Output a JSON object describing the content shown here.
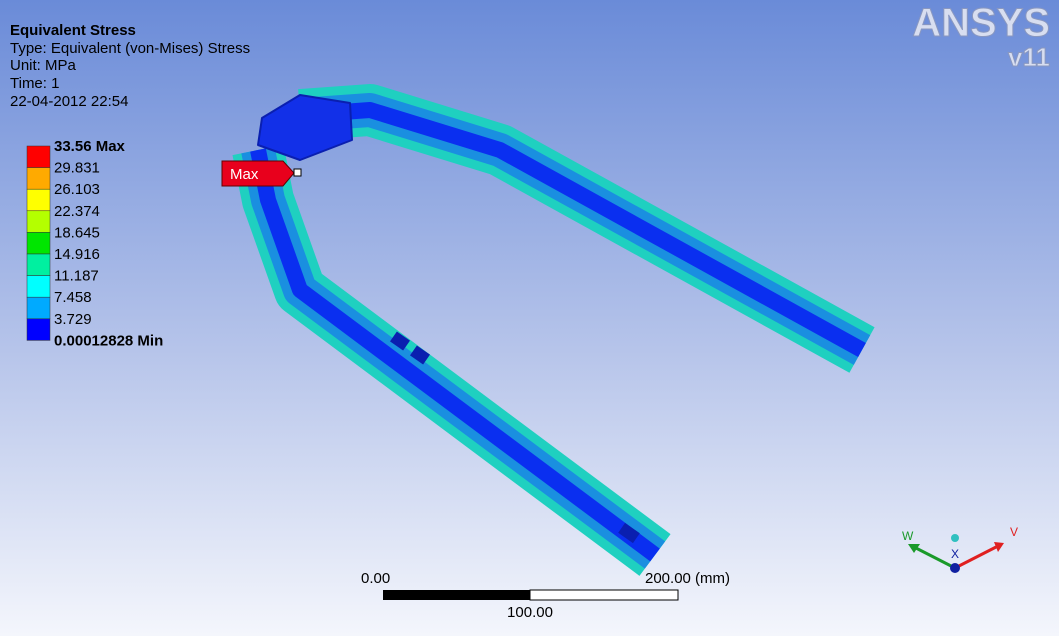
{
  "header": {
    "title": "Equivalent Stress",
    "type": "Type: Equivalent (von-Mises) Stress",
    "unit": "Unit: MPa",
    "time": "Time: 1",
    "date": "22-04-2012 22:54"
  },
  "legend": {
    "labels": [
      "33.56 Max",
      "29.831",
      "26.103",
      "22.374",
      "18.645",
      "14.916",
      "11.187",
      "7.458",
      "3.729",
      "0.00012828 Min"
    ],
    "colors": [
      "#ff0000",
      "#ffaa00",
      "#ffff00",
      "#b4ff00",
      "#00e600",
      "#00f0a0",
      "#00ffff",
      "#00aaff",
      "#0000ff"
    ]
  },
  "probe": {
    "label": "Max"
  },
  "logo": {
    "name": "ANSYS",
    "version": "v11"
  },
  "scale_bar": {
    "start": "0.00",
    "end": "200.00 (mm)",
    "middle": "100.00"
  },
  "triad": {
    "left": "W",
    "center": "X",
    "right": "V"
  }
}
